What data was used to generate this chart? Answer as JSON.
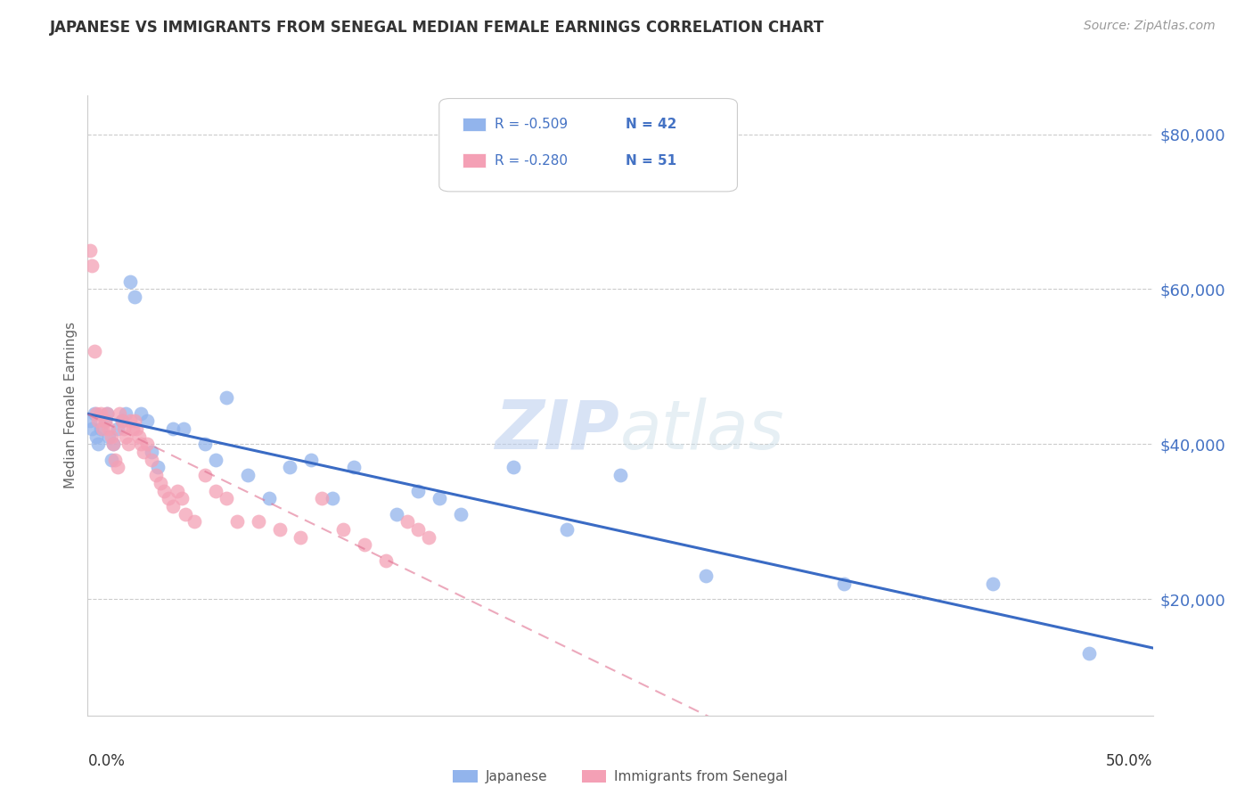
{
  "title": "JAPANESE VS IMMIGRANTS FROM SENEGAL MEDIAN FEMALE EARNINGS CORRELATION CHART",
  "source": "Source: ZipAtlas.com",
  "ylabel": "Median Female Earnings",
  "watermark": "ZIPatlas",
  "ytick_labels": [
    "$80,000",
    "$60,000",
    "$40,000",
    "$20,000"
  ],
  "ytick_values": [
    80000,
    60000,
    40000,
    20000
  ],
  "legend_japanese_R": "R = -0.509",
  "legend_japanese_N": "N = 42",
  "legend_senegal_R": "R = -0.280",
  "legend_senegal_N": "N = 51",
  "japanese_color": "#92B4EC",
  "senegal_color": "#F4A0B5",
  "japanese_line_color": "#3A6BC4",
  "senegal_line_color": "#E07090",
  "japanese_x": [
    0.001,
    0.002,
    0.003,
    0.004,
    0.005,
    0.006,
    0.008,
    0.009,
    0.01,
    0.011,
    0.012,
    0.014,
    0.016,
    0.018,
    0.02,
    0.022,
    0.025,
    0.028,
    0.03,
    0.033,
    0.04,
    0.045,
    0.055,
    0.06,
    0.065,
    0.075,
    0.085,
    0.095,
    0.105,
    0.115,
    0.125,
    0.145,
    0.155,
    0.165,
    0.175,
    0.2,
    0.225,
    0.25,
    0.29,
    0.355,
    0.425,
    0.47
  ],
  "japanese_y": [
    43000,
    42000,
    44000,
    41000,
    40000,
    42000,
    43000,
    44000,
    41000,
    38000,
    40000,
    42000,
    43000,
    44000,
    61000,
    59000,
    44000,
    43000,
    39000,
    37000,
    42000,
    42000,
    40000,
    38000,
    46000,
    36000,
    33000,
    37000,
    38000,
    33000,
    37000,
    31000,
    34000,
    33000,
    31000,
    37000,
    29000,
    36000,
    23000,
    22000,
    22000,
    13000
  ],
  "senegal_x": [
    0.001,
    0.002,
    0.003,
    0.004,
    0.005,
    0.006,
    0.007,
    0.008,
    0.009,
    0.01,
    0.011,
    0.012,
    0.013,
    0.014,
    0.015,
    0.016,
    0.017,
    0.018,
    0.019,
    0.02,
    0.021,
    0.022,
    0.023,
    0.024,
    0.025,
    0.026,
    0.028,
    0.03,
    0.032,
    0.034,
    0.036,
    0.038,
    0.04,
    0.042,
    0.044,
    0.046,
    0.05,
    0.055,
    0.06,
    0.065,
    0.07,
    0.08,
    0.09,
    0.1,
    0.11,
    0.12,
    0.13,
    0.14,
    0.15,
    0.155,
    0.16
  ],
  "senegal_y": [
    65000,
    63000,
    52000,
    44000,
    43000,
    44000,
    42000,
    43000,
    44000,
    42000,
    41000,
    40000,
    38000,
    37000,
    44000,
    43000,
    42000,
    41000,
    40000,
    43000,
    42000,
    43000,
    42000,
    41000,
    40000,
    39000,
    40000,
    38000,
    36000,
    35000,
    34000,
    33000,
    32000,
    34000,
    33000,
    31000,
    30000,
    36000,
    34000,
    33000,
    30000,
    30000,
    29000,
    28000,
    33000,
    29000,
    27000,
    25000,
    30000,
    29000,
    28000
  ],
  "xmin": 0.0,
  "xmax": 0.5,
  "ymin": 5000,
  "ymax": 85000,
  "background_color": "#ffffff",
  "grid_color": "#cccccc",
  "title_color": "#333333",
  "right_label_color": "#4472C4",
  "source_color": "#999999"
}
